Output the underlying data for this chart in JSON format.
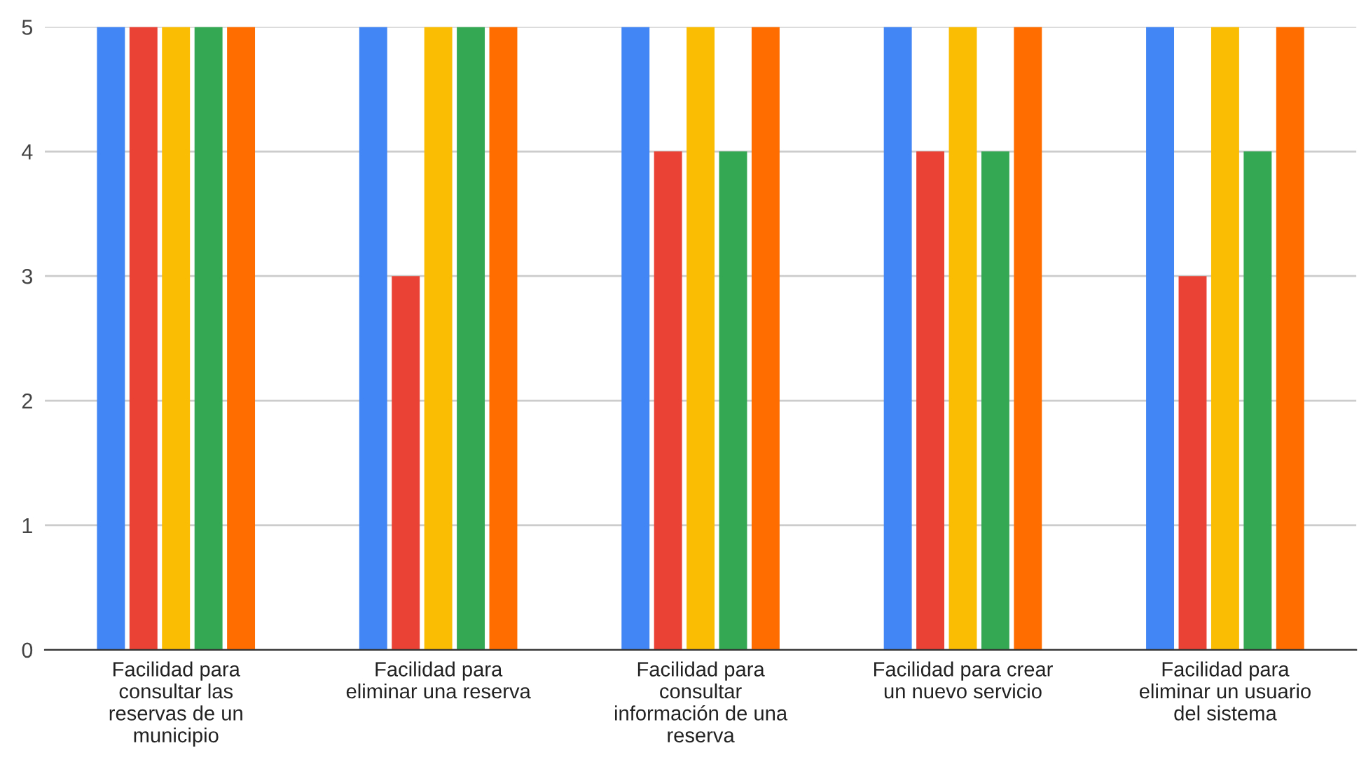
{
  "chart_data": {
    "type": "bar",
    "categories": [
      "Facilidad para\nconsultar las\nreservas de un\nmunicipio",
      "Facilidad para\neliminar una reserva",
      "Facilidad para\nconsultar\ninformación de una\nreserva",
      "Facilidad para crear\nun nuevo servicio",
      "Facilidad para\neliminar un usuario\ndel sistema"
    ],
    "series": [
      {
        "color": "#4285f4",
        "values": [
          5,
          5,
          5,
          5,
          5
        ]
      },
      {
        "color": "#ea4335",
        "values": [
          5,
          3,
          4,
          4,
          3
        ]
      },
      {
        "color": "#fbbc04",
        "values": [
          5,
          5,
          5,
          5,
          5
        ]
      },
      {
        "color": "#34a853",
        "values": [
          5,
          5,
          4,
          4,
          4
        ]
      },
      {
        "color": "#ff6d01",
        "values": [
          5,
          5,
          5,
          5,
          5
        ]
      }
    ],
    "ylim": [
      0,
      5
    ],
    "yticks": [
      0,
      1,
      2,
      3,
      4,
      5
    ],
    "grid": "y"
  }
}
